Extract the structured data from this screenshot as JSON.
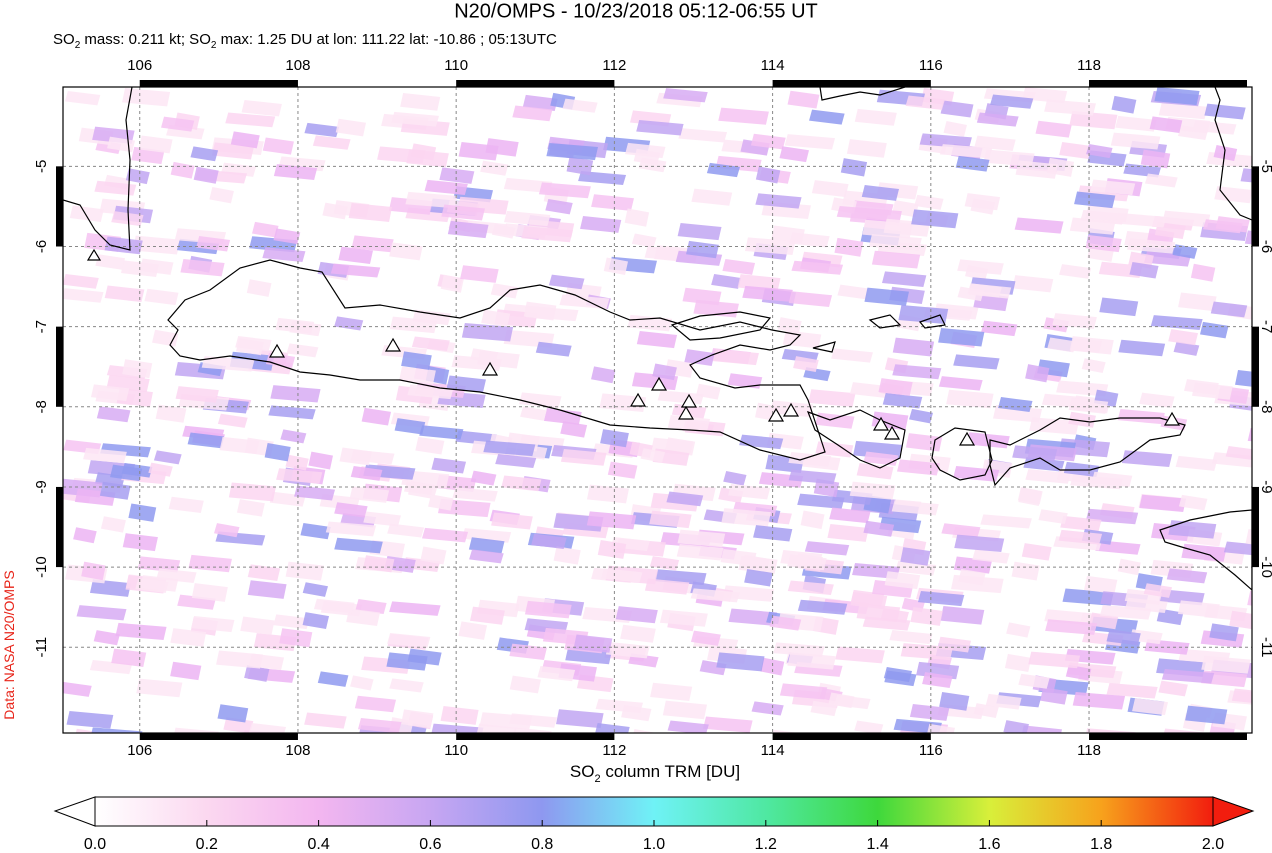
{
  "title": "N20/OMPS - 10/23/2018 05:12-06:55 UT",
  "subtitle": [
    "SO",
    "2",
    " mass: 0.211 kt; SO",
    "2",
    " max: 1.25 DU at lon: 111.22 lat: -10.86 ; 05:13UTC"
  ],
  "side_label": "Data: NASA N20/OMPS",
  "map": {
    "xlim": [
      105.03,
      120.06
    ],
    "ylim": [
      -4.01,
      -12.07
    ],
    "xticks": [
      106,
      108,
      110,
      112,
      114,
      116,
      118
    ],
    "yticks": [
      -5,
      -6,
      -7,
      -8,
      -9,
      -10,
      -11
    ],
    "grid": true
  },
  "colorbar": {
    "lim": [
      0,
      2
    ],
    "ticks": [
      {
        "value": 0,
        "label": "0.0"
      },
      0.2,
      0.4,
      0.6,
      0.8,
      {
        "value": 1,
        "label": "1.0"
      },
      1.2,
      1.4,
      1.6,
      1.8,
      {
        "value": 2,
        "label": "2.0"
      }
    ],
    "label": [
      "SO",
      "2",
      " column TRM [DU]"
    ]
  }
}
